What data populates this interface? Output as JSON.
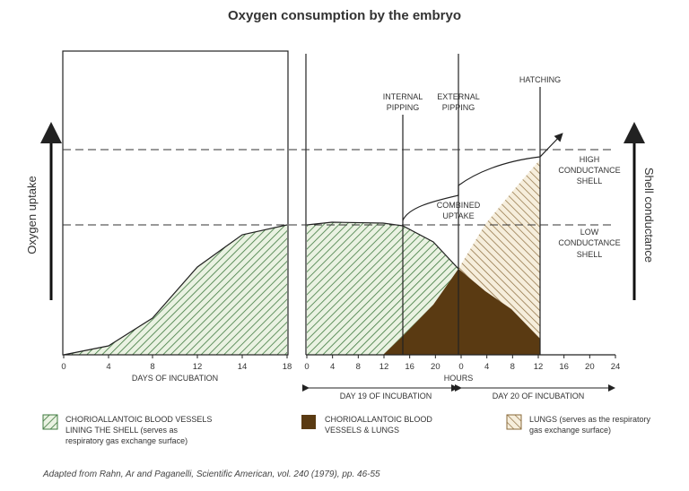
{
  "title": "Oxygen consumption by the embryo",
  "left_axis_label": "Oxygen uptake",
  "right_axis_label": "Shell conductance",
  "days_ticks": [
    "0",
    "4",
    "8",
    "12",
    "14",
    "18"
  ],
  "hours_ticks": [
    "0",
    "4",
    "8",
    "12",
    "16",
    "20",
    "0",
    "4",
    "8",
    "12",
    "16",
    "20",
    "24"
  ],
  "days_label": "DAYS OF INCUBATION",
  "hours_label": "HOURS",
  "day19_label": "DAY 19 OF INCUBATION",
  "day20_label": "DAY 20 OF INCUBATION",
  "annotations": {
    "internal_pipping": [
      "INTERNAL",
      "PIPPING"
    ],
    "external_pipping": [
      "EXTERNAL",
      "PIPPING"
    ],
    "hatching": "HATCHING",
    "high_conductance": [
      "HIGH",
      "CONDUCTANCE",
      "SHELL"
    ],
    "low_conductance": [
      "LOW",
      "CONDUCTANCE",
      "SHELL"
    ],
    "combined_uptake": [
      "COMBINED",
      "UPTAKE"
    ]
  },
  "legend": [
    {
      "lines": [
        "CHORIOALLANTOIC BLOOD VESSELS",
        "LINING THE SHELL (serves as",
        "respiratory gas exchange surface)"
      ]
    },
    {
      "lines": [
        "CHORIOALLANTOIC BLOOD",
        "VESSELS & LUNGS"
      ]
    },
    {
      "lines": [
        "LUNGS (serves as the respiratory",
        "gas exchange surface)"
      ]
    }
  ],
  "source": "Adapted from Rahn, Ar and Paganelli, Scientific American, vol. 240 (1979), pp. 46-55"
}
